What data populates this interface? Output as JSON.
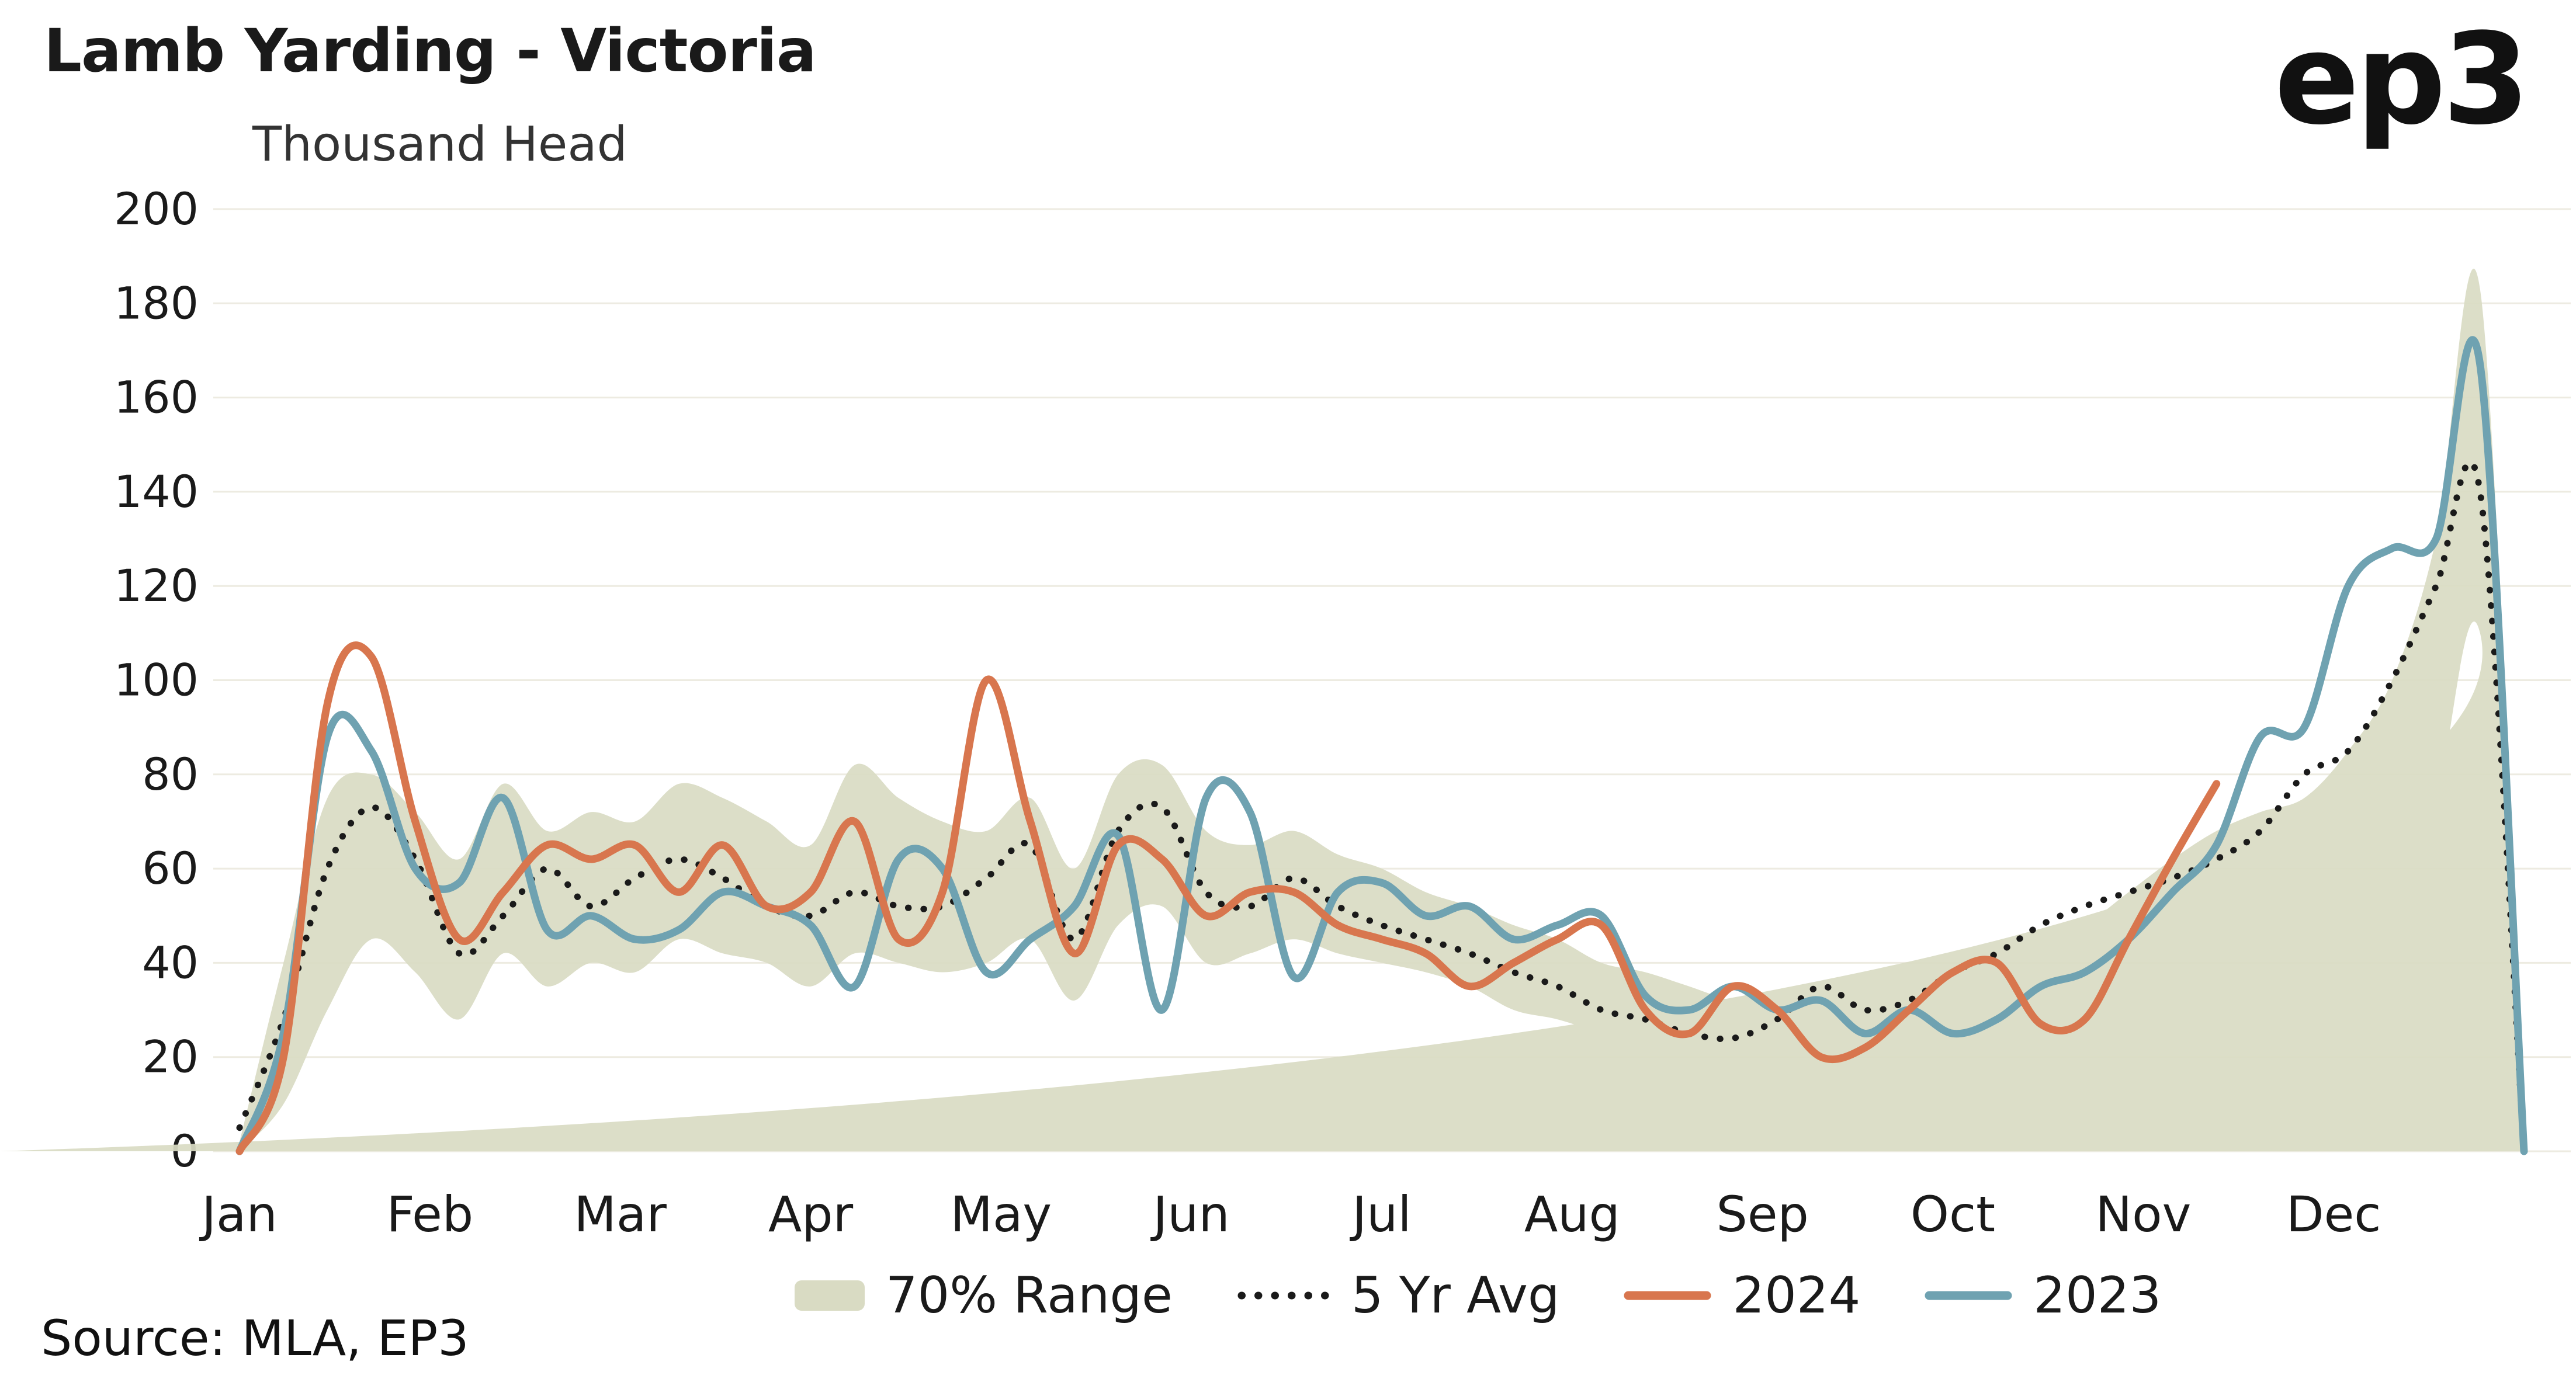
{
  "page": {
    "logo": "ep3",
    "source": "Source: MLA, EP3"
  },
  "chart_data": {
    "type": "line",
    "title": "Lamb Yarding - Victoria",
    "ylabel": "Thousand Head",
    "xlabel": "",
    "ylim": [
      0,
      200
    ],
    "y_tick_step": 20,
    "grid": "horizontal",
    "legend_position": "bottom",
    "x_unit": "week",
    "weeks": 53,
    "months": [
      "Jan",
      "Feb",
      "Mar",
      "Apr",
      "May",
      "Jun",
      "Jul",
      "Aug",
      "Sep",
      "Oct",
      "Nov",
      "Dec"
    ],
    "band": {
      "name": "70% Range",
      "color": "#d9dbc3",
      "low": [
        0,
        10,
        30,
        45,
        38,
        28,
        42,
        35,
        40,
        38,
        45,
        42,
        40,
        35,
        42,
        40,
        38,
        40,
        45,
        32,
        48,
        52,
        40,
        42,
        45,
        42,
        40,
        38,
        35,
        30,
        28,
        25,
        22,
        20,
        18,
        18,
        20,
        18,
        22,
        20,
        22,
        25,
        28,
        30,
        35,
        40,
        45,
        48,
        52,
        60,
        75,
        110,
        0
      ],
      "high": [
        2,
        40,
        75,
        80,
        72,
        62,
        78,
        68,
        72,
        70,
        78,
        75,
        70,
        65,
        82,
        75,
        70,
        68,
        75,
        60,
        80,
        82,
        68,
        65,
        68,
        63,
        60,
        55,
        52,
        48,
        45,
        40,
        38,
        35,
        32,
        32,
        35,
        35,
        40,
        38,
        40,
        44,
        48,
        55,
        62,
        68,
        72,
        75,
        85,
        100,
        130,
        183,
        5
      ]
    },
    "series": [
      {
        "name": "5 Yr Avg",
        "style": "dotted",
        "color": "#1a1a1a",
        "values": [
          5,
          28,
          60,
          73,
          62,
          42,
          50,
          60,
          52,
          58,
          62,
          58,
          52,
          50,
          55,
          52,
          52,
          58,
          65,
          45,
          68,
          73,
          55,
          52,
          58,
          52,
          48,
          45,
          42,
          38,
          35,
          30,
          28,
          25,
          24,
          28,
          35,
          30,
          32,
          38,
          42,
          48,
          52,
          55,
          58,
          62,
          68,
          80,
          85,
          100,
          120,
          140,
          0
        ]
      },
      {
        "name": "2024",
        "style": "solid",
        "color": "#d8764e",
        "values": [
          0,
          20,
          95,
          105,
          70,
          45,
          55,
          65,
          62,
          65,
          55,
          65,
          52,
          55,
          70,
          45,
          55,
          100,
          70,
          42,
          65,
          62,
          50,
          55,
          55,
          48,
          45,
          42,
          35,
          40,
          45,
          48,
          30,
          25,
          35,
          30,
          20,
          22,
          30,
          38,
          40,
          27,
          28,
          45,
          62,
          78
        ]
      },
      {
        "name": "2023",
        "style": "solid",
        "color": "#6fa2b1",
        "values": [
          0,
          25,
          88,
          85,
          60,
          57,
          75,
          47,
          50,
          45,
          47,
          55,
          52,
          48,
          35,
          62,
          60,
          38,
          45,
          52,
          67,
          30,
          75,
          72,
          37,
          55,
          57,
          50,
          52,
          45,
          48,
          50,
          33,
          30,
          35,
          30,
          32,
          25,
          30,
          25,
          28,
          35,
          38,
          45,
          55,
          65,
          88,
          90,
          120,
          128,
          130,
          167,
          0
        ]
      }
    ]
  }
}
